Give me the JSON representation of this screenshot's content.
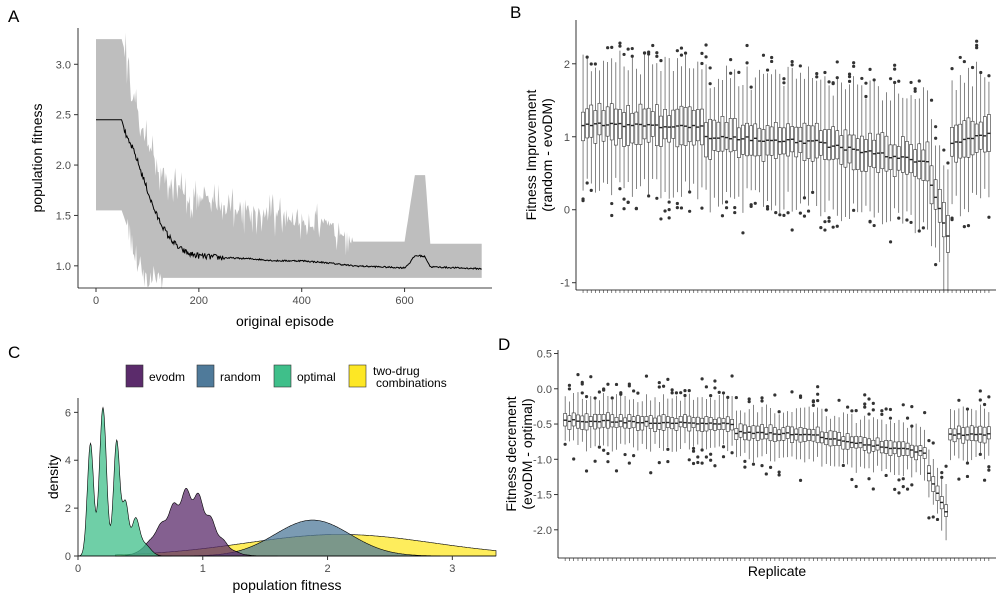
{
  "colors": {
    "evodm": "#5b2b6b",
    "random": "#4f7a9a",
    "optimal": "#3fbf8a",
    "two_drug": "#fde725",
    "ribbon": "#bebebe",
    "line": "#000000"
  },
  "chart_data": [
    {
      "panel": "A",
      "type": "line",
      "xlabel": "original episode",
      "ylabel": "population fitness",
      "xlim": [
        -35,
        770
      ],
      "ylim": [
        0.78,
        3.36
      ],
      "xticks": [
        0,
        200,
        400,
        600
      ],
      "yticks": [
        1.0,
        1.5,
        2.0,
        2.5,
        3.0
      ],
      "mean_line": {
        "x": [
          0,
          50,
          60,
          70,
          80,
          90,
          100,
          110,
          120,
          140,
          160,
          180,
          200,
          220,
          250,
          300,
          350,
          400,
          450,
          500,
          550,
          600,
          610,
          620,
          630,
          640,
          650,
          700,
          750
        ],
        "y": [
          2.45,
          2.45,
          2.26,
          2.18,
          2.05,
          1.9,
          1.75,
          1.6,
          1.48,
          1.3,
          1.18,
          1.12,
          1.1,
          1.09,
          1.08,
          1.07,
          1.05,
          1.05,
          1.03,
          1.0,
          0.99,
          0.98,
          1.03,
          1.1,
          1.1,
          1.09,
          0.99,
          0.98,
          0.97
        ]
      },
      "ribbon": {
        "x": [
          0,
          50,
          60,
          70,
          80,
          90,
          100,
          120,
          140,
          160,
          180,
          200,
          250,
          300,
          350,
          400,
          450,
          490,
          500,
          600,
          620,
          640,
          650,
          700,
          750
        ],
        "upper": [
          3.25,
          3.25,
          3.05,
          2.75,
          2.5,
          2.35,
          2.2,
          2.0,
          1.85,
          1.75,
          1.68,
          1.65,
          1.6,
          1.55,
          1.5,
          1.45,
          1.38,
          1.35,
          1.24,
          1.24,
          1.9,
          1.9,
          1.22,
          1.22,
          1.22
        ],
        "lower": [
          1.55,
          1.55,
          1.4,
          1.22,
          1.05,
          0.92,
          0.88,
          0.88,
          0.88,
          0.88,
          0.88,
          0.88,
          0.88,
          0.88,
          0.88,
          0.88,
          0.88,
          0.88,
          0.88,
          0.88,
          0.88,
          0.88,
          0.88,
          0.88,
          0.88
        ]
      }
    },
    {
      "panel": "B",
      "type": "box",
      "xlabel": "",
      "ylabel": [
        "Fitness Improvement",
        "(random - evoDM)"
      ],
      "ylim": [
        -1.1,
        2.6
      ],
      "yticks": [
        -1,
        0,
        1,
        2
      ],
      "n_replicates": 100,
      "median_segments": [
        {
          "from": 1,
          "to": 30,
          "start": 1.17,
          "end": 1.13
        },
        {
          "from": 31,
          "to": 60,
          "start": 1.0,
          "end": 0.92
        },
        {
          "from": 61,
          "to": 85,
          "start": 0.88,
          "end": 0.65
        },
        {
          "from": 86,
          "to": 90,
          "start": 0.35,
          "end": -0.35
        },
        {
          "from": 91,
          "to": 100,
          "start": 0.9,
          "end": 1.05
        }
      ]
    },
    {
      "panel": "C",
      "type": "density",
      "xlabel": "population fitness",
      "ylabel": "density",
      "xlim": [
        0,
        3.35
      ],
      "ylim": [
        0,
        6.6
      ],
      "xticks": [
        0,
        1,
        2,
        3
      ],
      "yticks": [
        0,
        2,
        4,
        6
      ],
      "legend_position": "top",
      "series": [
        {
          "name": "evodm",
          "key": "evodm"
        },
        {
          "name": "random",
          "key": "random"
        },
        {
          "name": "optimal",
          "key": "optimal"
        },
        {
          "name": "two-drug combinations",
          "key": "two_drug",
          "label_lines": [
            "two-drug",
            "combinations"
          ]
        }
      ]
    },
    {
      "panel": "D",
      "type": "box",
      "xlabel": "Replicate",
      "ylabel": [
        "Fitness decrement",
        "(evoDM - optimal)"
      ],
      "ylim": [
        -2.4,
        0.55
      ],
      "yticks": [
        -2.0,
        -1.5,
        -1.0,
        -0.5,
        0.0,
        0.5
      ],
      "n_replicates": 100,
      "median_segments": [
        {
          "from": 1,
          "to": 40,
          "start": -0.45,
          "end": -0.5
        },
        {
          "from": 41,
          "to": 60,
          "start": -0.62,
          "end": -0.65
        },
        {
          "from": 61,
          "to": 85,
          "start": -0.7,
          "end": -0.9
        },
        {
          "from": 86,
          "to": 90,
          "start": -1.2,
          "end": -1.75
        },
        {
          "from": 91,
          "to": 100,
          "start": -0.65,
          "end": -0.65
        }
      ]
    }
  ]
}
